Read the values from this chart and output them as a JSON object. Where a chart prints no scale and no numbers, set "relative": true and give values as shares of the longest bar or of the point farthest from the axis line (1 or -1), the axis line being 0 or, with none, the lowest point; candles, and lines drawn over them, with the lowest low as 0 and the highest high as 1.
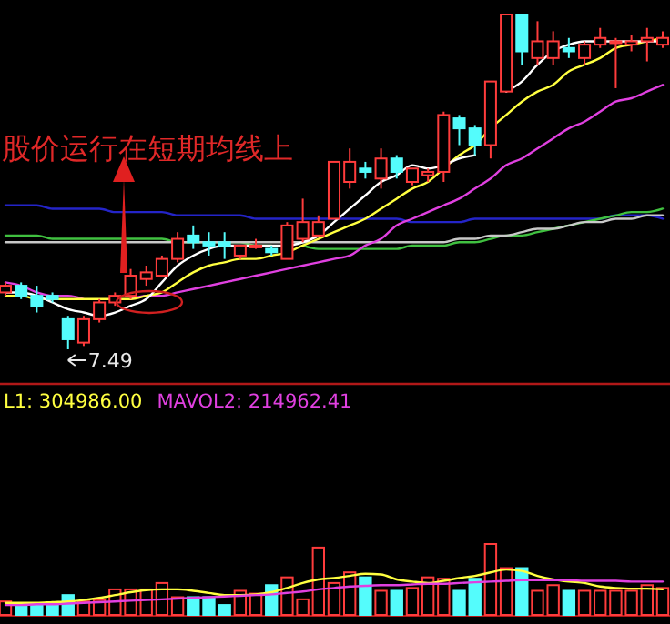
{
  "chart_data": [
    {
      "type": "candlestick",
      "relative": true,
      "categories": [
        null,
        null,
        null,
        null,
        null,
        null,
        null,
        null,
        null,
        null,
        null,
        null,
        null,
        null,
        null,
        null,
        null,
        null,
        null,
        null,
        null,
        null,
        null,
        null,
        null,
        null,
        null,
        null,
        null,
        null,
        null,
        null,
        null,
        null,
        null,
        null,
        null,
        null,
        null,
        null,
        null,
        null,
        null
      ],
      "ohlc": [
        [
          0.17,
          0.2,
          0.16,
          0.19
        ],
        [
          0.19,
          0.2,
          0.15,
          0.16
        ],
        [
          0.16,
          0.19,
          0.11,
          0.13
        ],
        [
          0.16,
          0.17,
          0.14,
          0.15
        ],
        [
          0.09,
          0.1,
          0,
          0.03
        ],
        [
          0.02,
          0.1,
          0.01,
          0.09
        ],
        [
          0.09,
          0.15,
          0.08,
          0.14
        ],
        [
          0.14,
          0.17,
          0.13,
          0.16
        ],
        [
          0.16,
          0.24,
          0.15,
          0.22
        ],
        [
          0.21,
          0.25,
          0.19,
          0.23
        ],
        [
          0.22,
          0.28,
          0.22,
          0.27
        ],
        [
          0.27,
          0.35,
          0.26,
          0.33
        ],
        [
          0.34,
          0.37,
          0.3,
          0.32
        ],
        [
          0.32,
          0.35,
          0.28,
          0.31
        ],
        [
          0.32,
          0.35,
          0.27,
          0.31
        ],
        [
          0.28,
          0.31,
          0.27,
          0.31
        ],
        [
          0.31,
          0.33,
          0.3,
          0.31
        ],
        [
          0.3,
          0.31,
          0.28,
          0.29
        ],
        [
          0.27,
          0.38,
          0.27,
          0.37
        ],
        [
          0.33,
          0.45,
          0.32,
          0.38
        ],
        [
          0.34,
          0.4,
          0.34,
          0.38
        ],
        [
          0.39,
          0.56,
          0.39,
          0.56
        ],
        [
          0.5,
          0.6,
          0.48,
          0.56
        ],
        [
          0.54,
          0.56,
          0.51,
          0.53
        ],
        [
          0.51,
          0.6,
          0.48,
          0.57
        ],
        [
          0.57,
          0.58,
          0.51,
          0.53
        ],
        [
          0.5,
          0.54,
          0.49,
          0.54
        ],
        [
          0.52,
          0.54,
          0.5,
          0.53
        ],
        [
          0.53,
          0.71,
          0.5,
          0.7
        ],
        [
          0.69,
          0.7,
          0.61,
          0.66
        ],
        [
          0.66,
          0.67,
          0.58,
          0.61
        ],
        [
          0.61,
          0.8,
          0.57,
          0.8
        ],
        [
          0.77,
          1,
          0.77,
          1
        ],
        [
          1,
          1,
          0.85,
          0.89
        ],
        [
          0.87,
          0.98,
          0.85,
          0.92
        ],
        [
          0.87,
          0.95,
          0.85,
          0.92
        ],
        [
          0.9,
          0.93,
          0.87,
          0.89
        ],
        [
          0.87,
          0.92,
          0.85,
          0.91
        ],
        [
          0.91,
          0.96,
          0.9,
          0.93
        ],
        [
          0.92,
          0.93,
          0.78,
          0.92
        ],
        [
          0.91,
          0.94,
          0.89,
          0.92
        ],
        [
          0.92,
          0.96,
          0.86,
          0.93
        ],
        [
          0.91,
          0.95,
          0.9,
          0.93
        ]
      ],
      "colors": [
        "#ff3c3c",
        "#54fcfc",
        "#54fcfc",
        "#54fcfc",
        "#54fcfc",
        "#ff3c3c",
        "#ff3c3c",
        "#ff3c3c",
        "#ff3c3c",
        "#ff3c3c",
        "#ff3c3c",
        "#ff3c3c",
        "#54fcfc",
        "#54fcfc",
        "#54fcfc",
        "#ff3c3c",
        "#ff3c3c",
        "#54fcfc",
        "#ff3c3c",
        "#ff3c3c",
        "#ff3c3c",
        "#ff3c3c",
        "#ff3c3c",
        "#54fcfc",
        "#ff3c3c",
        "#54fcfc",
        "#ff3c3c",
        "#ff3c3c",
        "#ff3c3c",
        "#54fcfc",
        "#54fcfc",
        "#ff3c3c",
        "#ff3c3c",
        "#54fcfc",
        "#ff3c3c",
        "#ff3c3c",
        "#54fcfc",
        "#ff3c3c",
        "#ff3c3c",
        "#ff3c3c",
        "#ff3c3c",
        "#ff3c3c",
        "#ff3c3c"
      ],
      "series": [
        {
          "type": "line",
          "color": "#2424c8",
          "values": [
            0.43,
            0.43,
            0.43,
            0.42,
            0.42,
            0.42,
            0.42,
            0.41,
            0.41,
            0.41,
            0.41,
            0.4,
            0.4,
            0.4,
            0.4,
            0.4,
            0.39,
            0.39,
            0.39,
            0.39,
            0.39,
            0.39,
            0.39,
            0.39,
            0.39,
            0.39,
            0.38,
            0.38,
            0.38,
            0.38,
            0.39,
            0.39,
            0.39,
            0.39,
            0.39,
            0.39,
            0.39,
            0.39,
            0.39,
            0.4,
            0.4,
            0.4,
            0.39
          ]
        },
        {
          "type": "line",
          "color": "#40c040",
          "values": [
            0.34,
            0.34,
            0.34,
            0.33,
            0.33,
            0.33,
            0.33,
            0.33,
            0.33,
            0.33,
            0.33,
            0.32,
            0.32,
            0.32,
            0.32,
            0.32,
            0.31,
            0.31,
            null,
            0.31,
            0.3,
            0.3,
            0.3,
            0.3,
            0.3,
            0.3,
            0.31,
            0.31,
            0.31,
            0.32,
            0.32,
            0.33,
            0.34,
            0.34,
            0.35,
            0.36,
            0.37,
            0.38,
            0.39,
            0.4,
            0.41,
            0.41,
            0.42
          ]
        },
        {
          "type": "line",
          "color": "#c8c8c8",
          "values": [
            0.32,
            0.32,
            0.32,
            0.32,
            0.32,
            0.32,
            0.32,
            0.32,
            0.32,
            0.32,
            0.32,
            0.32,
            0.32,
            0.32,
            0.32,
            0.32,
            0.32,
            0.32,
            0.32,
            0.32,
            0.32,
            0.32,
            0.32,
            0.32,
            0.32,
            0.32,
            0.32,
            0.32,
            0.32,
            0.33,
            0.33,
            0.34,
            0.34,
            0.35,
            0.36,
            0.36,
            0.37,
            0.38,
            0.38,
            0.39,
            0.39,
            0.4,
            0.4
          ]
        },
        {
          "type": "line",
          "color": "#e040e0",
          "values": [
            0.2,
            0.19,
            0.17,
            0.16,
            0.16,
            0.15,
            null,
            null,
            0.15,
            0.16,
            0.16,
            0.17,
            0.18,
            0.19,
            0.2,
            0.21,
            0.22,
            0.23,
            0.24,
            0.25,
            0.26,
            0.27,
            0.28,
            0.31,
            0.33,
            0.37,
            0.39,
            0.41,
            0.43,
            0.45,
            0.48,
            0.51,
            0.55,
            0.57,
            0.6,
            0.63,
            0.66,
            0.68,
            0.71,
            0.74,
            0.75,
            0.77,
            0.79
          ]
        },
        {
          "type": "line",
          "color": "#ffff40",
          "values": [
            0.16,
            0.16,
            0.15,
            0.15,
            0.15,
            0.15,
            0.15,
            0.15,
            0.15,
            0.16,
            0.17,
            0.2,
            0.23,
            0.25,
            0.26,
            0.27,
            0.27,
            0.28,
            0.29,
            0.31,
            0.33,
            0.35,
            0.37,
            0.39,
            0.42,
            0.45,
            0.48,
            0.5,
            0.54,
            0.58,
            0.61,
            0.66,
            0.7,
            0.74,
            0.77,
            0.79,
            0.83,
            0.85,
            0.87,
            0.9,
            0.91,
            0.92,
            0.93
          ]
        },
        {
          "type": "line",
          "color": "#ffffff",
          "values": [
            0.17,
            0.17,
            0.16,
            0.14,
            0.12,
            0.11,
            0.1,
            0.11,
            0.13,
            0.15,
            0.2,
            0.25,
            0.28,
            0.3,
            0.31,
            0.31,
            0.31,
            0.31,
            0.31,
            0.32,
            0.34,
            0.38,
            0.42,
            0.46,
            0.5,
            0.52,
            0.55,
            0.54,
            0.55,
            0.57,
            0.58,
            null,
            0.77,
            0.8,
            0.85,
            0.89,
            0.91,
            0.92,
            0.92,
            0.92,
            0.92,
            0.92,
            0.92
          ]
        }
      ],
      "annotations": [
        "股价运行在短期均线上",
        "7.49"
      ]
    },
    {
      "type": "bar",
      "relative": true,
      "legend": "top left",
      "categories": [
        null,
        null,
        null,
        null,
        null,
        null,
        null,
        null,
        null,
        null,
        null,
        null,
        null,
        null,
        null,
        null,
        null,
        null,
        null,
        null,
        null,
        null,
        null,
        null,
        null,
        null,
        null,
        null,
        null,
        null,
        null,
        null,
        null,
        null,
        null,
        null,
        null,
        null,
        null,
        null,
        null,
        null,
        null
      ],
      "series": [
        {
          "type": "bar",
          "colors": [
            "#ff3c3c",
            "#54fcfc",
            "#54fcfc",
            "#54fcfc",
            "#54fcfc",
            "#ff3c3c",
            "#ff3c3c",
            "#ff3c3c",
            "#ff3c3c",
            "#ff3c3c",
            "#ff3c3c",
            "#ff3c3c",
            "#54fcfc",
            "#54fcfc",
            "#54fcfc",
            "#ff3c3c",
            "#ff3c3c",
            "#54fcfc",
            "#ff3c3c",
            "#ff3c3c",
            "#ff3c3c",
            "#ff3c3c",
            "#ff3c3c",
            "#54fcfc",
            "#ff3c3c",
            "#54fcfc",
            "#ff3c3c",
            "#ff3c3c",
            "#ff3c3c",
            "#54fcfc",
            "#54fcfc",
            "#ff3c3c",
            "#ff3c3c",
            "#54fcfc",
            "#ff3c3c",
            "#ff3c3c",
            "#54fcfc",
            "#ff3c3c",
            "#ff3c3c",
            "#ff3c3c",
            "#ff3c3c",
            "#ff3c3c",
            "#ff3c3c"
          ],
          "values": [
            0.19,
            0.15,
            0.15,
            0.15,
            0.28,
            0.19,
            0.21,
            0.36,
            0.36,
            0.36,
            0.45,
            0.25,
            0.25,
            0.25,
            0.14,
            0.34,
            0.3,
            0.42,
            0.53,
            0.22,
            0.95,
            0.45,
            0.6,
            0.53,
            0.34,
            0.34,
            0.38,
            0.53,
            0.51,
            0.34,
            0.51,
            1,
            0.66,
            0.66,
            0.34,
            0.42,
            0.34,
            0.34,
            0.34,
            0.34,
            0.34,
            0.42,
            0.38
          ]
        },
        {
          "type": "line",
          "name": "L1: 304986.00",
          "color": "#ffff40",
          "values": [
            0.17,
            0.17,
            0.17,
            0.18,
            0.19,
            0.21,
            0.24,
            0.28,
            0.32,
            0.35,
            0.36,
            0.36,
            0.34,
            0.31,
            0.28,
            0.28,
            0.29,
            0.32,
            0.38,
            0.45,
            0.5,
            0.52,
            0.55,
            0.58,
            0.57,
            0.5,
            0.47,
            0.45,
            0.48,
            0.52,
            0.55,
            0.6,
            0.64,
            0.62,
            0.55,
            0.5,
            0.47,
            0.45,
            0.4,
            0.38,
            0.37,
            0.37,
            0.36
          ]
        },
        {
          "type": "line",
          "name": "MAVOL2: 214962.41",
          "color": "#e040e0",
          "values": [
            0.14,
            0.14,
            0.15,
            0.15,
            0.16,
            0.17,
            0.18,
            0.19,
            0.2,
            0.21,
            0.22,
            0.23,
            0.24,
            0.25,
            0.26,
            0.27,
            0.28,
            0.29,
            0.31,
            0.33,
            0.36,
            0.38,
            0.4,
            0.41,
            0.42,
            0.42,
            0.43,
            0.44,
            0.44,
            0.45,
            0.46,
            0.47,
            0.48,
            0.49,
            0.49,
            0.49,
            0.49,
            0.48,
            0.48,
            0.48,
            0.47,
            0.47,
            0.47
          ]
        }
      ]
    }
  ]
}
